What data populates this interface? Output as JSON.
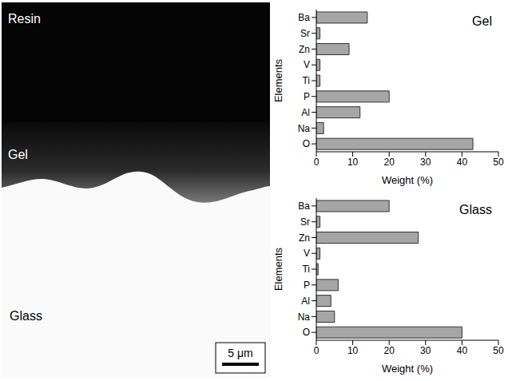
{
  "micrograph": {
    "labels": [
      "Resin",
      "Gel",
      "Glass"
    ],
    "scale_bar": "5 μm"
  },
  "chart_data": [
    {
      "type": "bar",
      "orientation": "horizontal",
      "title": "Gel",
      "x_label": "Weight (%)",
      "y_label": "Elements",
      "categories": [
        "Ba",
        "Sr",
        "Zn",
        "V",
        "Ti",
        "P",
        "Al",
        "Na",
        "O"
      ],
      "values": [
        14,
        1,
        9,
        1,
        1,
        20,
        12,
        2,
        43
      ],
      "color": "#a6a6a6",
      "xlim": [
        0,
        50
      ],
      "xticks": [
        0,
        10,
        20,
        30,
        40,
        50
      ],
      "grid": false
    },
    {
      "type": "bar",
      "orientation": "horizontal",
      "title": "Glass",
      "x_label": "Weight (%)",
      "y_label": "Elements",
      "categories": [
        "Ba",
        "Sr",
        "Zn",
        "V",
        "Ti",
        "P",
        "Al",
        "Na",
        "O"
      ],
      "values": [
        20,
        1,
        28,
        1,
        0.5,
        6,
        4,
        5,
        40
      ],
      "color": "#a6a6a6",
      "xlim": [
        0,
        50
      ],
      "xticks": [
        0,
        10,
        20,
        30,
        40,
        50
      ],
      "grid": false
    }
  ]
}
